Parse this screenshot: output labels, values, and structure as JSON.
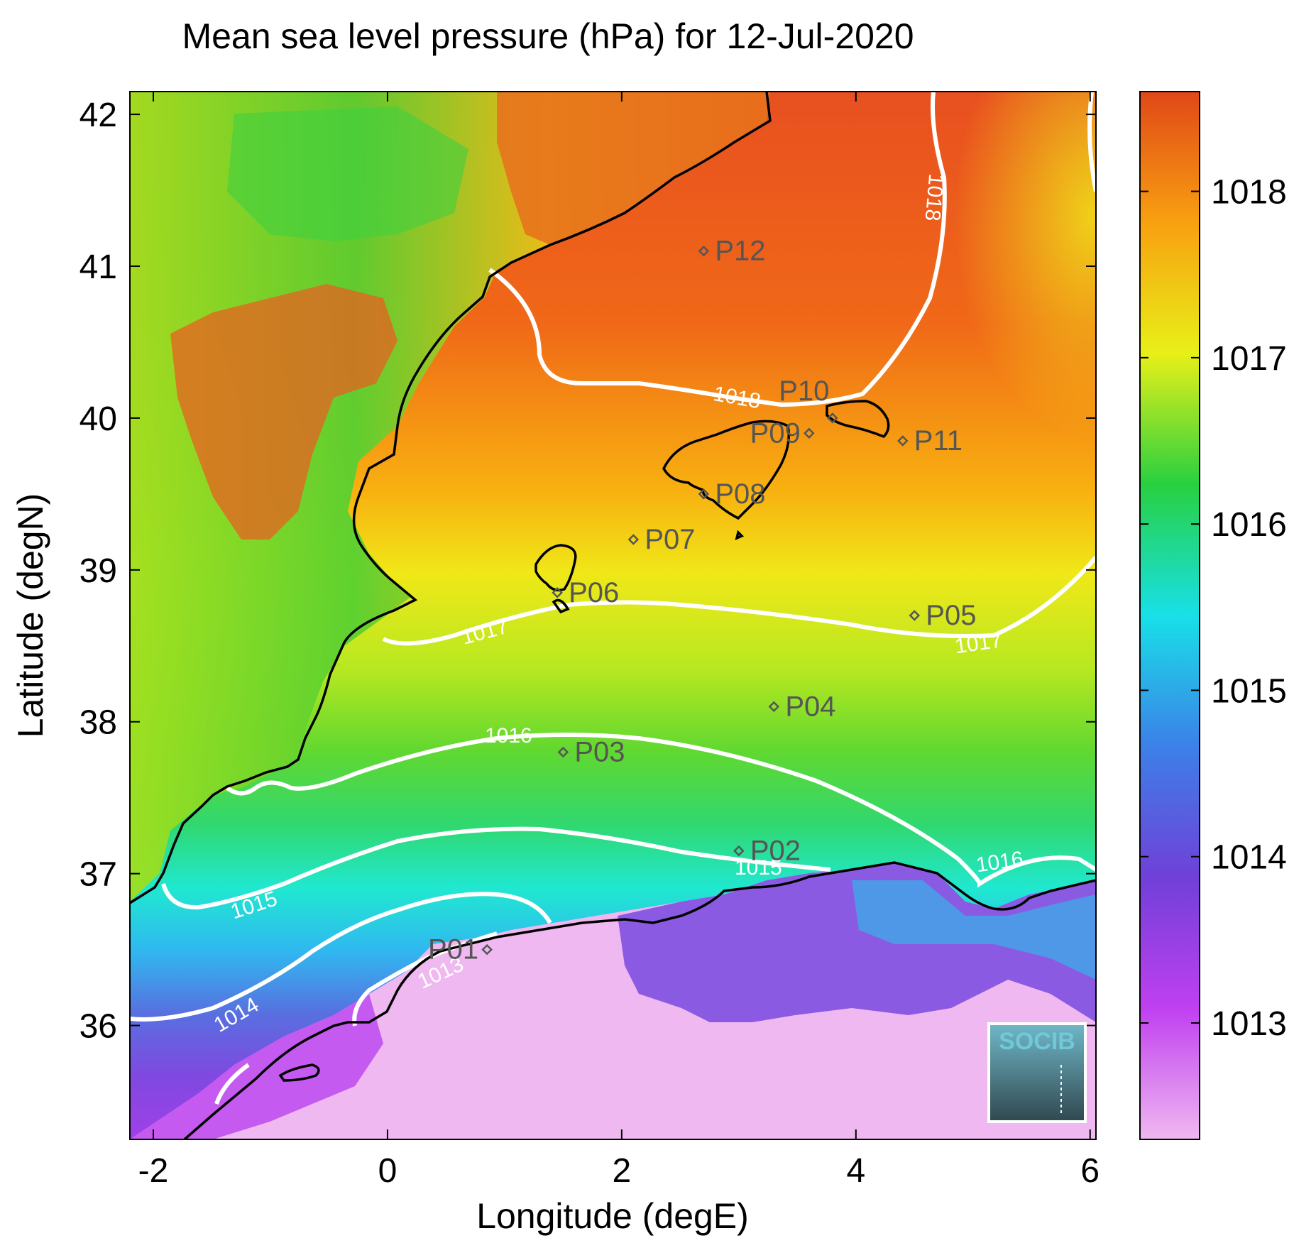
{
  "title": "Mean sea level pressure (hPa) for 12-Jul-2020",
  "xlabel": "Longitude (degE)",
  "ylabel": "Latitude (degN)",
  "xticks": [
    -2,
    0,
    2,
    4,
    6
  ],
  "yticks": [
    36,
    37,
    38,
    39,
    40,
    41,
    42
  ],
  "xlim": [
    -2.2,
    6.05
  ],
  "ylim": [
    35.25,
    42.15
  ],
  "colorbar": {
    "ticks": [
      1013,
      1014,
      1015,
      1016,
      1017,
      1018
    ],
    "range": [
      1012.3,
      1018.6
    ],
    "stops": [
      "#f0b8f0",
      "#c040f0",
      "#7040d8",
      "#3c80e8",
      "#18e0e8",
      "#28d040",
      "#e8f018",
      "#f8a010",
      "#e04818"
    ]
  },
  "contour_labels": {
    "c1013": "1013",
    "c1014": "1014",
    "c1015": "1015",
    "c1016": "1016",
    "c1017": "1017",
    "c1018": "1018"
  },
  "points": [
    {
      "name": "P01",
      "lon": 0.85,
      "lat": 36.5
    },
    {
      "name": "P02",
      "lon": 3.0,
      "lat": 37.15
    },
    {
      "name": "P03",
      "lon": 1.5,
      "lat": 37.8
    },
    {
      "name": "P04",
      "lon": 3.3,
      "lat": 38.1
    },
    {
      "name": "P05",
      "lon": 4.5,
      "lat": 38.7
    },
    {
      "name": "P06",
      "lon": 1.45,
      "lat": 38.85
    },
    {
      "name": "P07",
      "lon": 2.1,
      "lat": 39.2
    },
    {
      "name": "P08",
      "lon": 2.7,
      "lat": 39.5
    },
    {
      "name": "P09",
      "lon": 3.6,
      "lat": 39.9
    },
    {
      "name": "P10",
      "lon": 3.8,
      "lat": 40.0
    },
    {
      "name": "P11",
      "lon": 4.4,
      "lat": 39.85
    },
    {
      "name": "P12",
      "lon": 2.7,
      "lat": 41.1
    }
  ],
  "logo": "SOCIB",
  "colors": {
    "contour": "#ffffff",
    "coast": "#000000",
    "marker": "#555555"
  }
}
